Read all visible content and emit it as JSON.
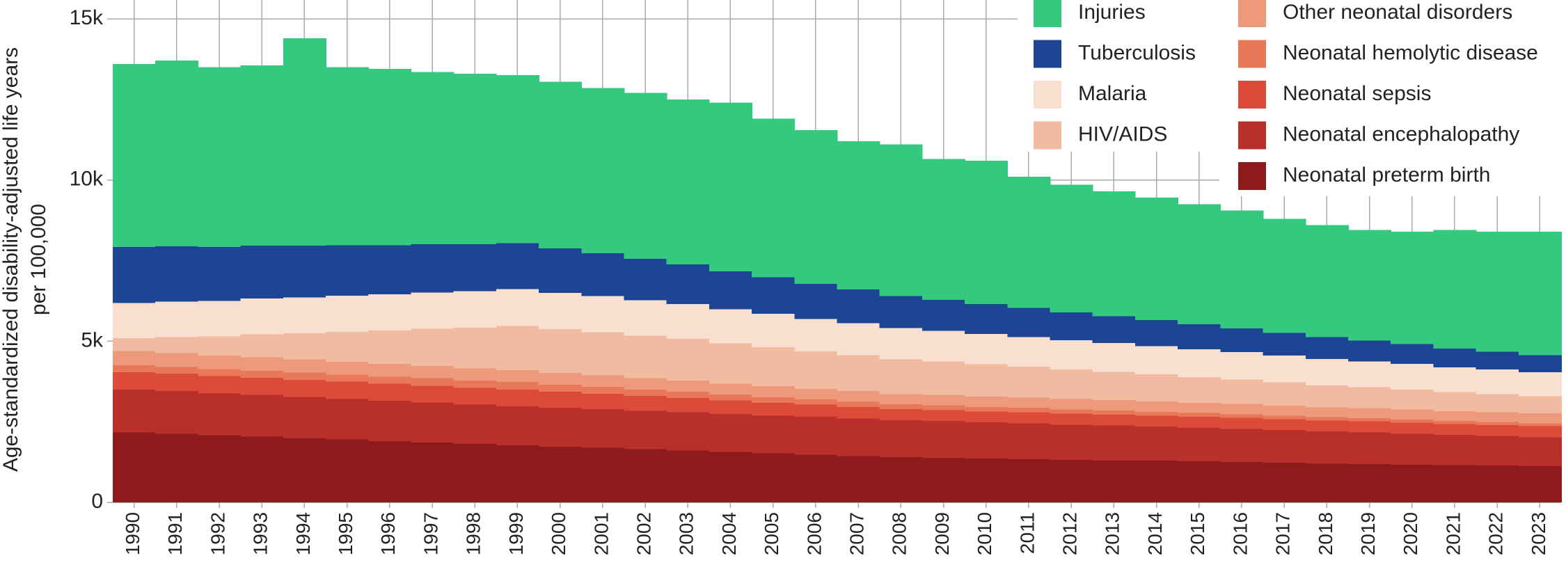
{
  "chart_data": {
    "type": "stacked_step_area",
    "y_label": [
      "Age-standardized disability-adjusted life years",
      "per 100,000"
    ],
    "categories": [
      "1990",
      "1991",
      "1992",
      "1993",
      "1994",
      "1995",
      "1996",
      "1997",
      "1998",
      "1999",
      "2000",
      "2001",
      "2002",
      "2003",
      "2004",
      "2005",
      "2006",
      "2007",
      "2008",
      "2009",
      "2010",
      "2011",
      "2012",
      "2013",
      "2014",
      "2015",
      "2016",
      "2017",
      "2018",
      "2019",
      "2020",
      "2021",
      "2022",
      "2023"
    ],
    "ylim": [
      0,
      15000
    ],
    "yticks": [
      0,
      {
        "value": 5000,
        "label": "5k"
      },
      {
        "value": 10000,
        "label": "10k"
      },
      {
        "value": 15000,
        "label": "15k"
      }
    ],
    "grid": true,
    "legend": "top-right",
    "series": [
      {
        "name": "Injuries",
        "color": "#34c97f",
        "values": [
          5680,
          5760,
          5580,
          5590,
          6440,
          5520,
          5470,
          5340,
          5290,
          5210,
          5170,
          5120,
          5150,
          5120,
          5230,
          4920,
          4770,
          4600,
          4700,
          4370,
          4450,
          4070,
          3960,
          3880,
          3800,
          3730,
          3650,
          3540,
          3470,
          3430,
          3490,
          3680,
          3730,
          3840
        ]
      },
      {
        "name": "Tuberculosis",
        "color": "#1c4594",
        "values": [
          1740,
          1710,
          1670,
          1640,
          1600,
          1570,
          1530,
          1500,
          1460,
          1430,
          1380,
          1330,
          1280,
          1230,
          1180,
          1130,
          1090,
          1040,
          990,
          960,
          930,
          900,
          860,
          830,
          800,
          770,
          740,
          710,
          680,
          650,
          620,
          580,
          550,
          520
        ]
      },
      {
        "name": "Malaria",
        "color": "#f8dfd0",
        "values": [
          1090,
          1100,
          1100,
          1110,
          1110,
          1120,
          1120,
          1130,
          1130,
          1140,
          1130,
          1120,
          1100,
          1080,
          1060,
          1040,
          1010,
          990,
          970,
          950,
          940,
          920,
          910,
          890,
          880,
          860,
          850,
          830,
          820,
          800,
          790,
          770,
          760,
          750
        ]
      },
      {
        "name": "HIV/AIDS",
        "color": "#f0bba0",
        "values": [
          400,
          500,
          600,
          710,
          820,
          930,
          1040,
          1150,
          1260,
          1370,
          1360,
          1340,
          1320,
          1290,
          1250,
          1210,
          1160,
          1120,
          1080,
          1040,
          1000,
          960,
          920,
          880,
          840,
          800,
          760,
          720,
          680,
          650,
          620,
          590,
          560,
          530
        ]
      },
      {
        "name": "Other neonatal disorders",
        "color": "#ec9a7b",
        "values": [
          440,
          430,
          420,
          420,
          410,
          400,
          390,
          380,
          380,
          370,
          360,
          360,
          350,
          350,
          340,
          340,
          330,
          330,
          320,
          320,
          320,
          320,
          320,
          320,
          320,
          320,
          320,
          310,
          310,
          310,
          310,
          310,
          310,
          310
        ]
      },
      {
        "name": "Neonatal hemolytic disease",
        "color": "#e97858",
        "values": [
          210,
          210,
          210,
          220,
          220,
          220,
          220,
          230,
          230,
          230,
          220,
          210,
          200,
          190,
          180,
          170,
          160,
          160,
          150,
          150,
          140,
          140,
          130,
          130,
          120,
          120,
          110,
          110,
          100,
          100,
          100,
          90,
          90,
          90
        ]
      },
      {
        "name": "Neonatal sepsis",
        "color": "#dc4b3a",
        "values": [
          540,
          540,
          540,
          530,
          530,
          530,
          530,
          520,
          520,
          520,
          500,
          480,
          460,
          440,
          420,
          400,
          380,
          360,
          340,
          340,
          340,
          340,
          340,
          340,
          340,
          340,
          340,
          340,
          340,
          340,
          340,
          340,
          340,
          340
        ]
      },
      {
        "name": "Neonatal encephalopathy",
        "color": "#b92f2a",
        "values": [
          1330,
          1320,
          1300,
          1290,
          1280,
          1260,
          1250,
          1240,
          1220,
          1210,
          1200,
          1200,
          1190,
          1190,
          1180,
          1170,
          1170,
          1160,
          1150,
          1140,
          1120,
          1110,
          1090,
          1080,
          1060,
          1040,
          1030,
          1010,
          990,
          980,
          960,
          940,
          920,
          900
        ]
      },
      {
        "name": "Neonatal preterm birth",
        "color": "#8e1b1b",
        "values": [
          2170,
          2130,
          2080,
          2040,
          1990,
          1950,
          1900,
          1860,
          1810,
          1770,
          1730,
          1690,
          1650,
          1610,
          1560,
          1520,
          1480,
          1440,
          1400,
          1380,
          1360,
          1340,
          1320,
          1300,
          1290,
          1270,
          1250,
          1230,
          1210,
          1190,
          1170,
          1150,
          1140,
          1120
        ]
      }
    ]
  }
}
